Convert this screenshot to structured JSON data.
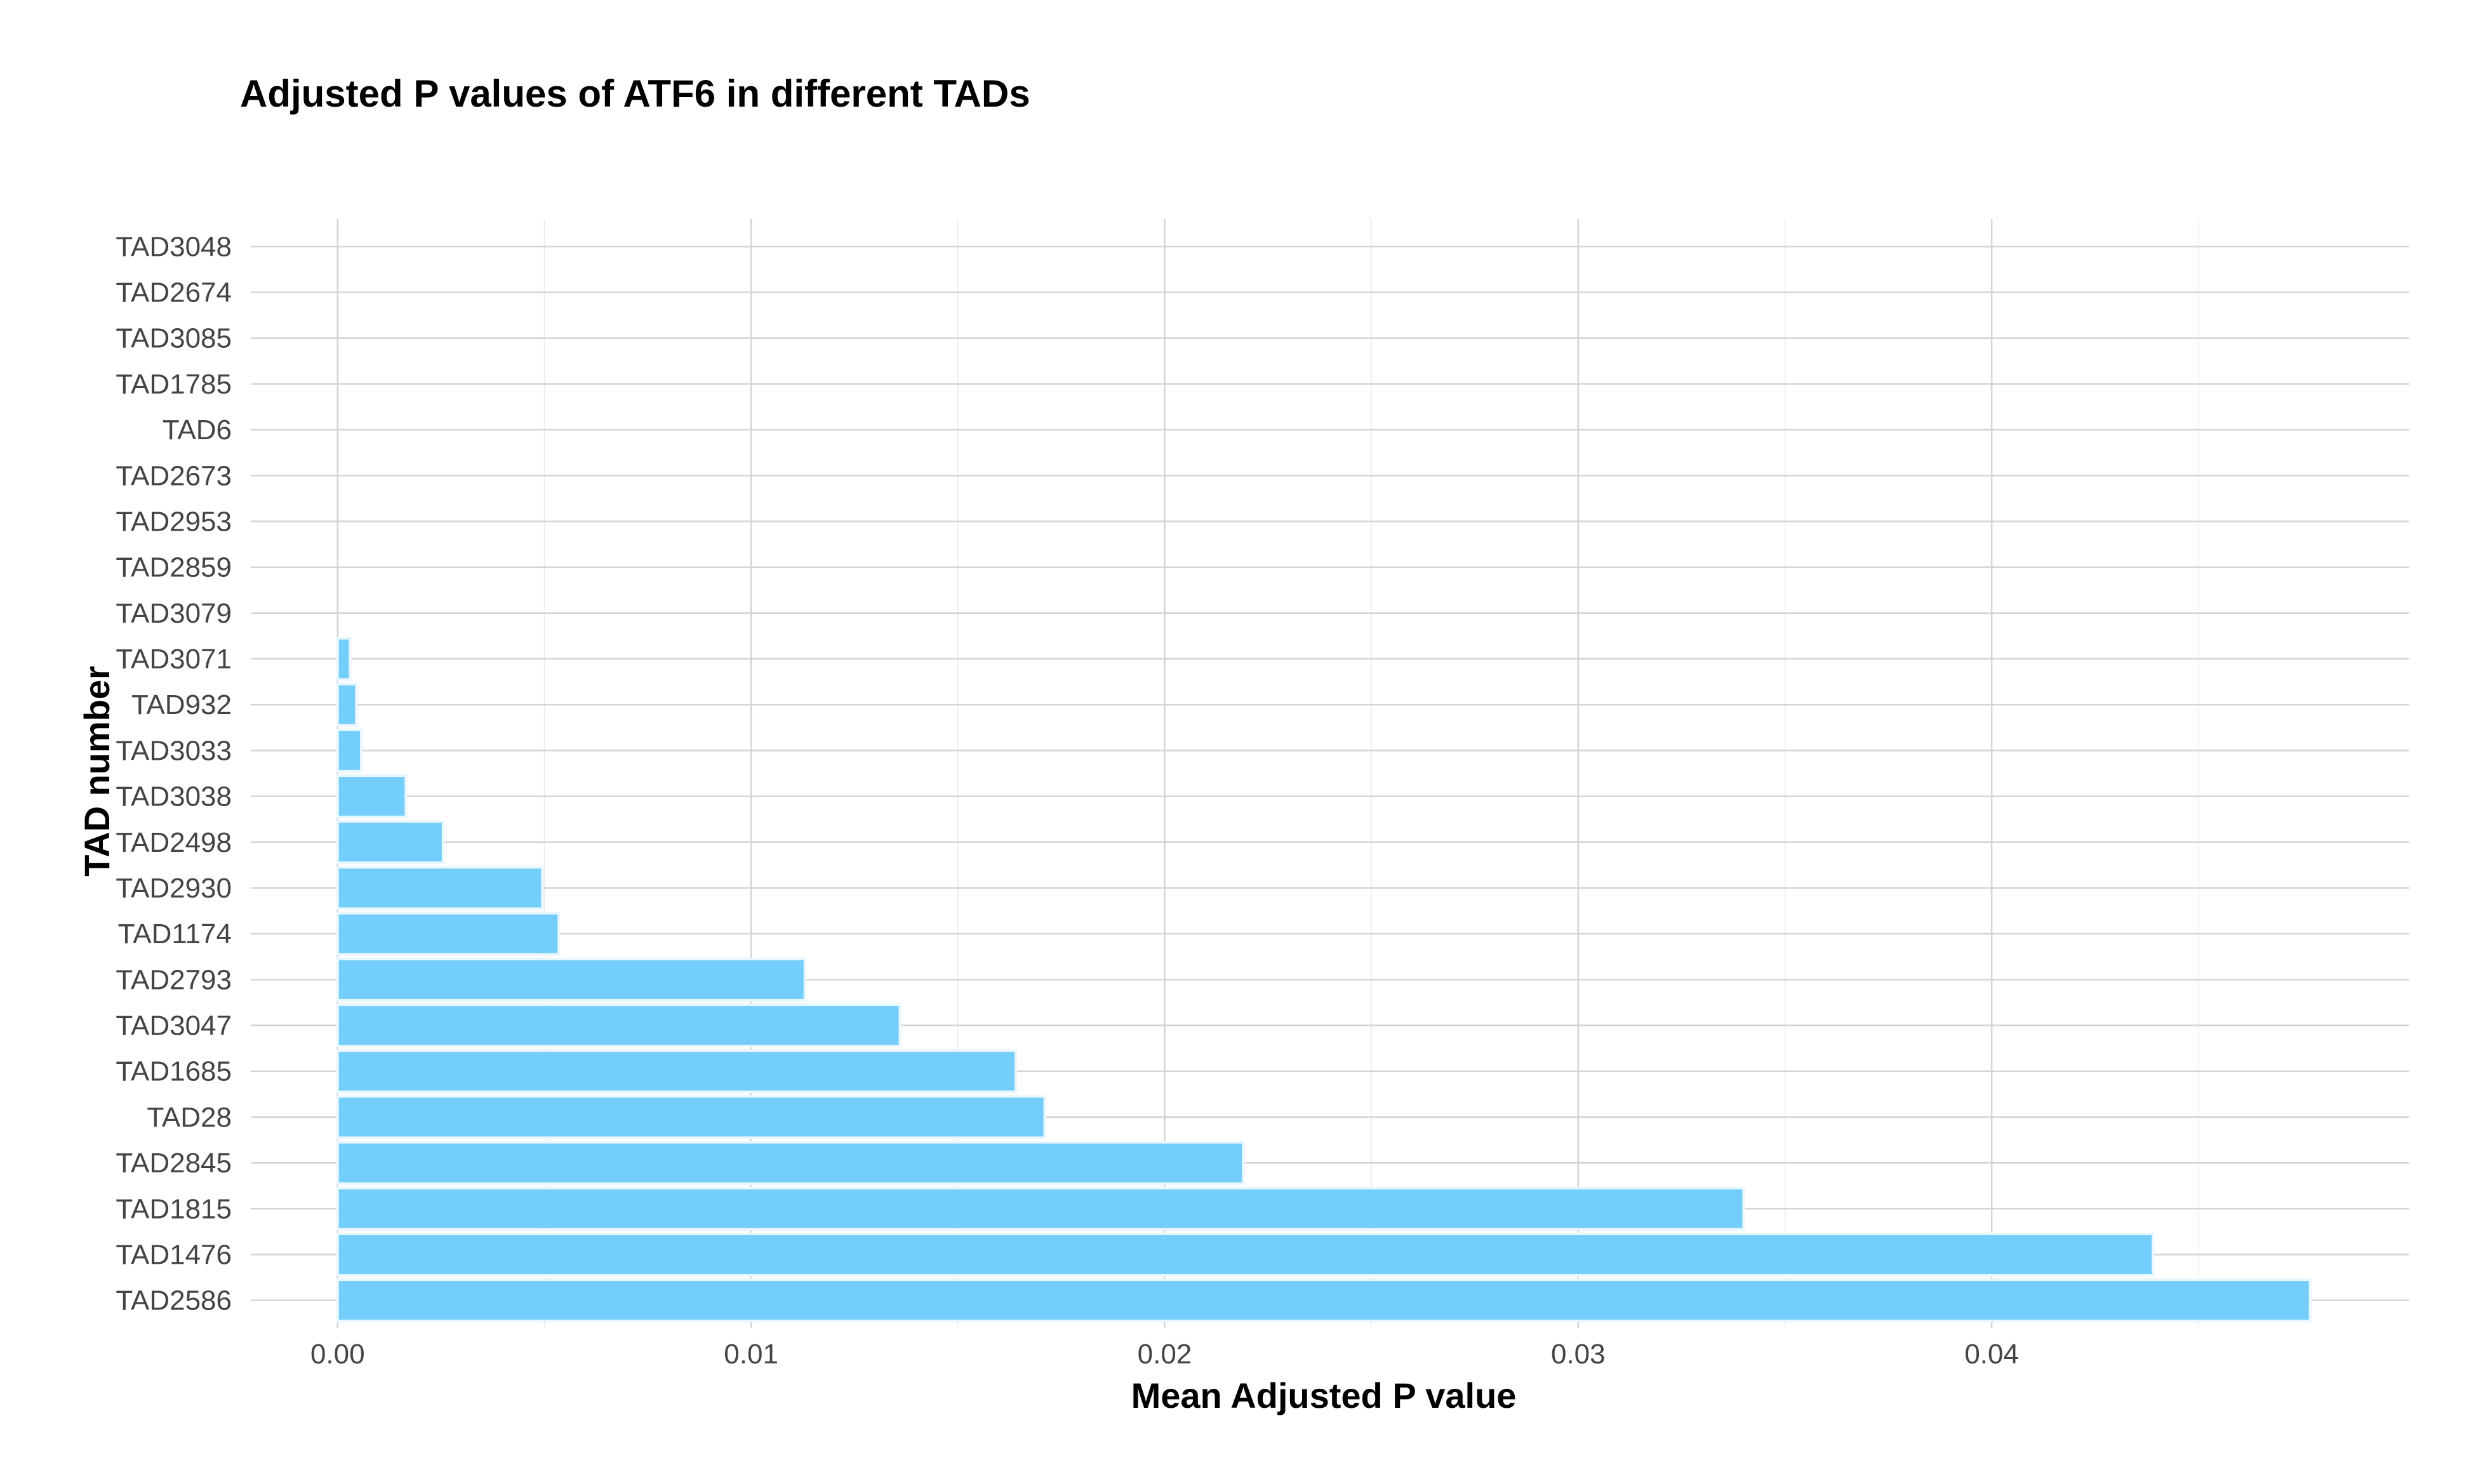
{
  "chart_data": {
    "type": "bar",
    "orientation": "horizontal",
    "title": "Adjusted P values of ATF6 in different TADs",
    "xlabel": "Mean Adjusted P value",
    "ylabel": "TAD number",
    "xlim": [
      -0.0021,
      0.0501
    ],
    "x_ticks": [
      "0.00",
      "0.01",
      "0.02",
      "0.03",
      "0.04"
    ],
    "x_tick_values": [
      0,
      0.01,
      0.02,
      0.03,
      0.04
    ],
    "grid": true,
    "bar_color": "#74CEFC",
    "bar_outline": "#e8f6ff",
    "categories": [
      "TAD3048",
      "TAD2674",
      "TAD3085",
      "TAD1785",
      "TAD6",
      "TAD2673",
      "TAD2953",
      "TAD2859",
      "TAD3079",
      "TAD3071",
      "TAD932",
      "TAD3033",
      "TAD3038",
      "TAD2498",
      "TAD2930",
      "TAD1174",
      "TAD2793",
      "TAD3047",
      "TAD1685",
      "TAD28",
      "TAD2845",
      "TAD1815",
      "TAD1476",
      "TAD2586"
    ],
    "values": [
      5e-07,
      1e-06,
      1e-06,
      2e-06,
      3e-06,
      4e-06,
      5e-06,
      8e-06,
      1.5e-05,
      0.0003,
      0.00045,
      0.00057,
      0.00165,
      0.00255,
      0.00495,
      0.00535,
      0.0113,
      0.0136,
      0.0164,
      0.0171,
      0.0219,
      0.034,
      0.0439,
      0.0477
    ]
  }
}
